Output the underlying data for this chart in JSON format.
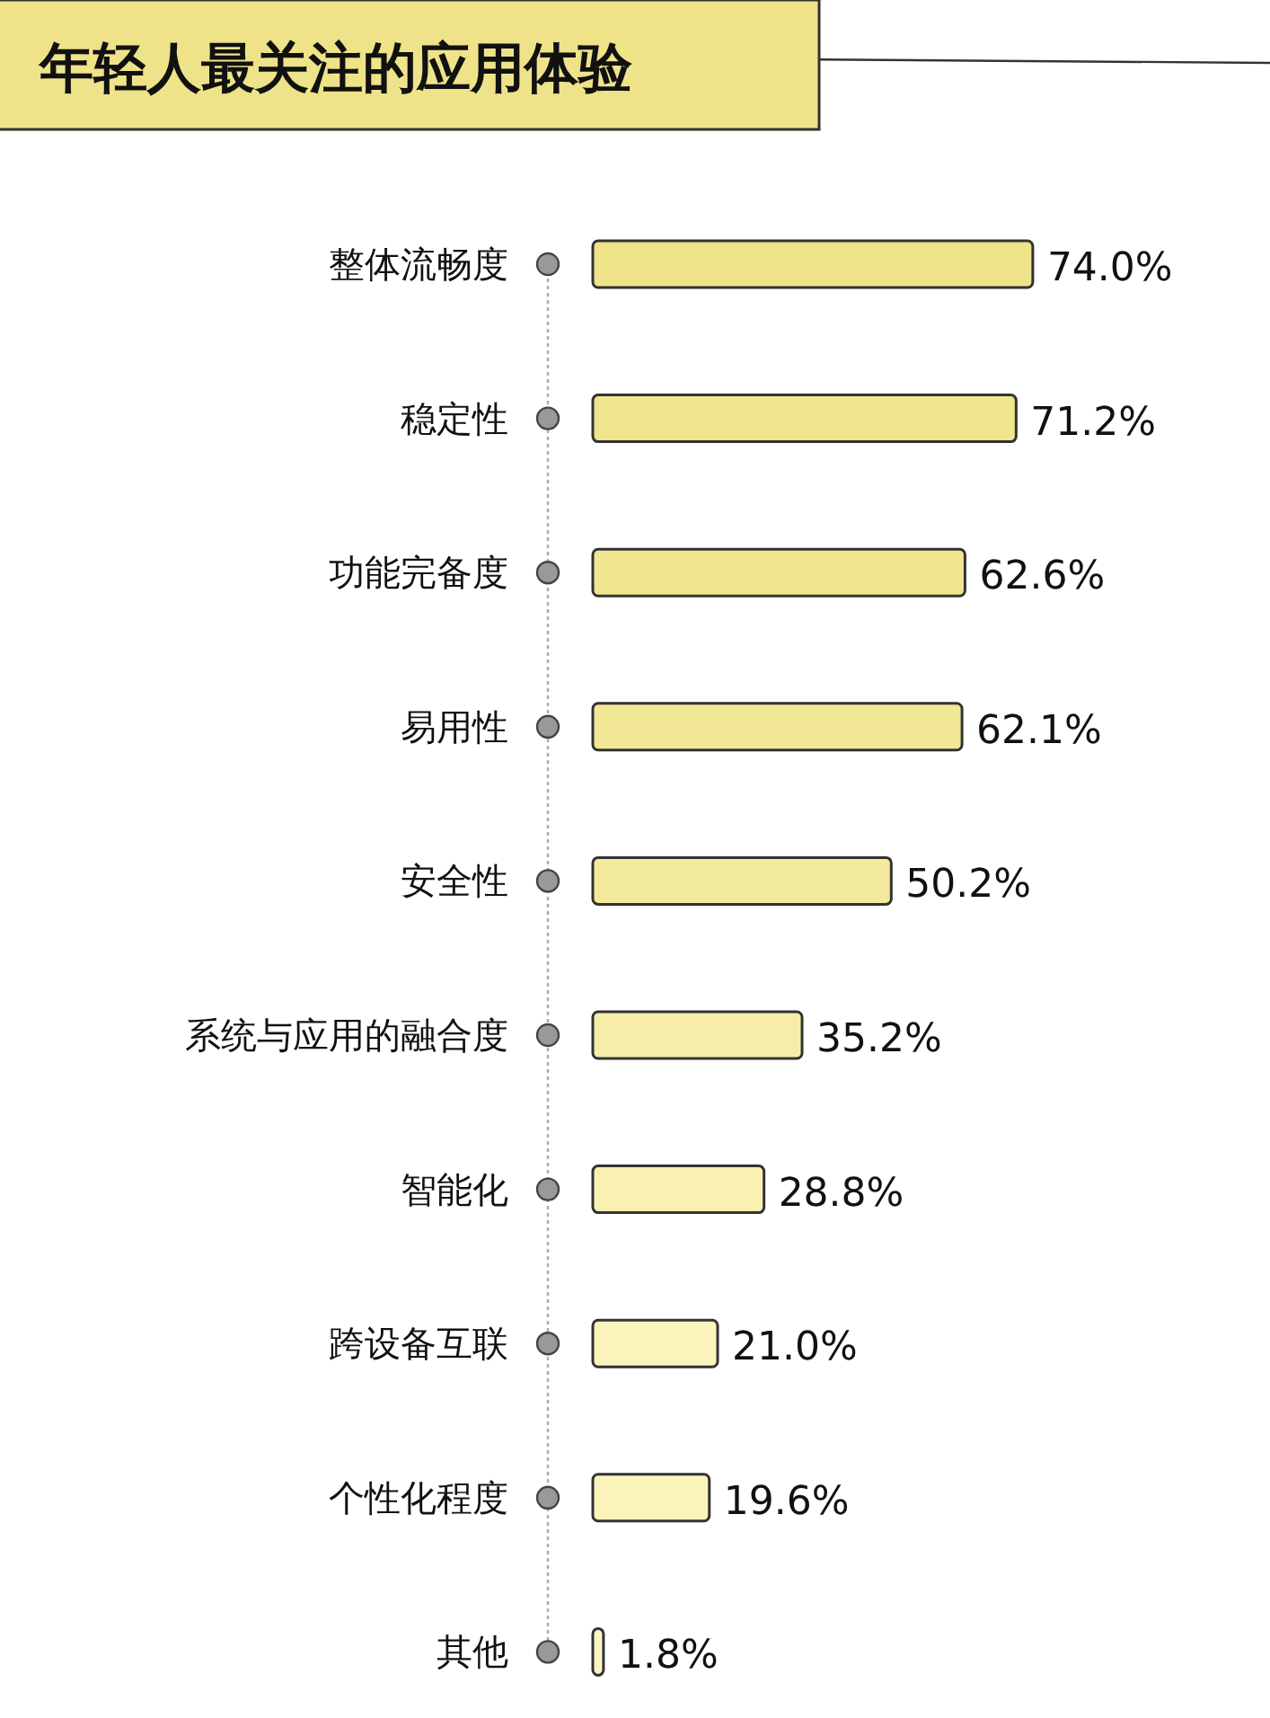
{
  "chart_data": {
    "type": "bar",
    "orientation": "horizontal",
    "title": "年轻人最关注的应用体验",
    "categories": [
      "整体流畅度",
      "稳定性",
      "功能完备度",
      "易用性",
      "安全性",
      "系统与应用的融合度",
      "智能化",
      "跨设备互联",
      "个性化程度",
      "其他"
    ],
    "values": [
      74.0,
      71.2,
      62.6,
      62.1,
      50.2,
      35.2,
      28.8,
      21.0,
      19.6,
      1.8
    ],
    "value_labels": [
      "74.0%",
      "71.2%",
      "62.6%",
      "62.1%",
      "50.2%",
      "35.2%",
      "28.8%",
      "21.0%",
      "19.6%",
      "1.8%"
    ],
    "colors": [
      "#efe38a",
      "#f0e48d",
      "#f1e690",
      "#f2e794",
      "#f4ea9c",
      "#f6eea8",
      "#f8f1b2",
      "#faf3bc",
      "#faf3bc",
      "#fbf5c6"
    ],
    "data_labels": false
  }
}
